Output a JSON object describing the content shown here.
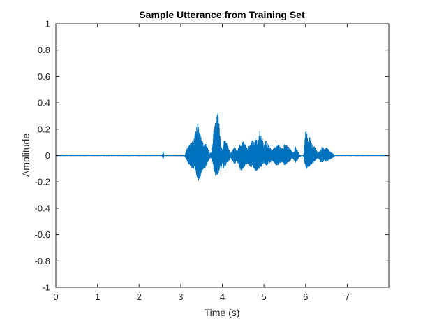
{
  "chart_data": {
    "type": "line",
    "title": "Sample Utterance from Training Set",
    "xlabel": "Time (s)",
    "ylabel": "Amplitude",
    "xlim": [
      0,
      8
    ],
    "ylim": [
      -1,
      1
    ],
    "x_ticks": [
      0,
      1,
      2,
      3,
      4,
      5,
      6,
      7
    ],
    "x_tick_labels": [
      "0",
      "1",
      "2",
      "3",
      "4",
      "5",
      "6",
      "7"
    ],
    "y_ticks": [
      -1,
      -0.8,
      -0.6,
      -0.4,
      -0.2,
      0,
      0.2,
      0.4,
      0.6,
      0.8,
      1
    ],
    "y_tick_labels": [
      "-1",
      "-0.8",
      "-0.6",
      "-0.4",
      "-0.2",
      "0",
      "0.2",
      "0.4",
      "0.6",
      "0.8",
      "1"
    ],
    "grid": false,
    "series": [
      {
        "color": "#0072BD",
        "envelope": {
          "x": [
            0,
            2.55,
            2.58,
            2.6,
            2.63,
            3.1,
            3.15,
            3.2,
            3.3,
            3.4,
            3.45,
            3.5,
            3.55,
            3.6,
            3.7,
            3.75,
            3.8,
            3.85,
            3.9,
            3.95,
            3.97,
            4.0,
            4.05,
            4.1,
            4.15,
            4.2,
            4.3,
            4.35,
            4.45,
            4.5,
            4.6,
            4.7,
            4.8,
            4.85,
            4.9,
            4.95,
            5.0,
            5.05,
            5.1,
            5.2,
            5.3,
            5.35,
            5.4,
            5.45,
            5.5,
            5.6,
            5.7,
            5.75,
            5.8,
            5.85,
            5.9,
            5.95,
            6.0,
            6.03,
            6.05,
            6.1,
            6.15,
            6.2,
            6.3,
            6.35,
            6.4,
            6.45,
            6.5,
            6.55,
            6.6,
            6.65,
            6.7,
            8
          ],
          "upper": [
            0.004,
            0.004,
            0.04,
            0.004,
            0.004,
            0.005,
            0.06,
            0.08,
            0.12,
            0.24,
            0.26,
            0.13,
            0.09,
            0.1,
            0.02,
            0.03,
            0.22,
            0.27,
            0.34,
            0.15,
            0.1,
            0.05,
            0.12,
            0.1,
            0.06,
            0.02,
            0.07,
            0.04,
            0.1,
            0.11,
            0.06,
            0.11,
            0.14,
            0.11,
            0.19,
            0.15,
            0.08,
            0.12,
            0.09,
            0.04,
            0.09,
            0.1,
            0.06,
            0.06,
            0.09,
            0.07,
            0.02,
            0.07,
            0.05,
            0.01,
            0.004,
            0.004,
            0.18,
            0.19,
            0.13,
            0.15,
            0.09,
            0.08,
            0.02,
            0.05,
            0.07,
            0.06,
            0.06,
            0.05,
            0.03,
            0.02,
            0.004,
            0.004
          ],
          "lower": [
            -0.004,
            -0.004,
            -0.03,
            -0.004,
            -0.004,
            -0.005,
            -0.05,
            -0.07,
            -0.11,
            -0.18,
            -0.2,
            -0.13,
            -0.1,
            -0.09,
            -0.02,
            -0.03,
            -0.12,
            -0.17,
            -0.15,
            -0.08,
            -0.11,
            -0.05,
            -0.12,
            -0.06,
            -0.06,
            -0.02,
            -0.07,
            -0.04,
            -0.13,
            -0.1,
            -0.06,
            -0.1,
            -0.12,
            -0.11,
            -0.11,
            -0.08,
            -0.06,
            -0.08,
            -0.07,
            -0.04,
            -0.08,
            -0.07,
            -0.06,
            -0.05,
            -0.08,
            -0.05,
            -0.02,
            -0.06,
            -0.04,
            -0.01,
            -0.004,
            -0.004,
            -0.1,
            -0.11,
            -0.1,
            -0.08,
            -0.07,
            -0.05,
            -0.02,
            -0.05,
            -0.06,
            -0.04,
            -0.05,
            -0.04,
            -0.03,
            -0.02,
            -0.004,
            -0.004
          ]
        }
      }
    ]
  }
}
